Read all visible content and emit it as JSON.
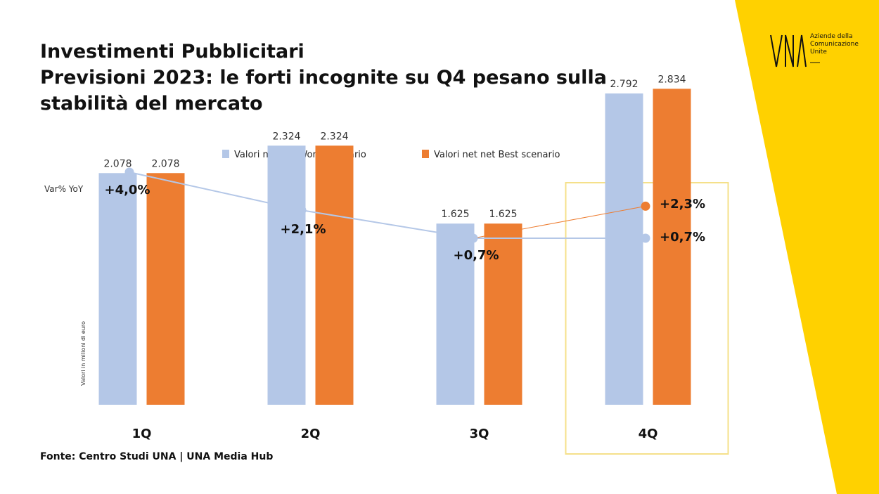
{
  "title_lines": [
    "Investimenti Pubblicitari",
    "Previsioni 2023: le forti incognite su Q4 pesano sulla",
    "stabilità del mercato"
  ],
  "source": "Fonte: Centro Studi UNA | UNA Media Hub",
  "logo": {
    "wordmark": "UNA",
    "lines": [
      "Aziende della",
      "Comunicazione",
      "Unite"
    ]
  },
  "colors": {
    "worst": "#b4c7e7",
    "best": "#ed7d31",
    "highlight_box": "#f5e08a",
    "yellow_band": "#ffd100",
    "text": "#111111"
  },
  "chart_data": [
    {
      "type": "bar",
      "title": "",
      "categories": [
        "1Q",
        "2Q",
        "3Q",
        "4Q"
      ],
      "series": [
        {
          "name": "Valori net net Worst scenario",
          "values": [
            2078,
            2324,
            1625,
            2792
          ],
          "labels": [
            "2.078",
            "2.324",
            "1.625",
            "2.792"
          ]
        },
        {
          "name": "Valori net net Best scenario",
          "values": [
            2078,
            2324,
            1625,
            2834
          ],
          "labels": [
            "2.078",
            "2.324",
            "1.625",
            "2.834"
          ]
        }
      ],
      "ylabel": "Valori in milioni di euro",
      "ylim": [
        0,
        3000
      ],
      "legend": "top",
      "grid": false,
      "highlight_category": "4Q"
    },
    {
      "type": "line",
      "label": "Var% YoY",
      "categories": [
        "1Q",
        "2Q",
        "3Q",
        "4Q"
      ],
      "series": [
        {
          "name": "Valori net net Worst scenario",
          "values": [
            4.0,
            2.1,
            0.7,
            0.7
          ],
          "labels": [
            "+4,0%",
            "+2,1%",
            "+0,7%",
            "+0,7%"
          ]
        },
        {
          "name": "Valori net net Best scenario",
          "values": [
            null,
            null,
            0.7,
            2.3
          ],
          "labels": [
            "",
            "",
            "",
            "+2,3%"
          ]
        }
      ],
      "ylim": [
        0,
        4.5
      ]
    }
  ]
}
